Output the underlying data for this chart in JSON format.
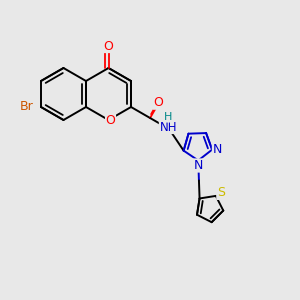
{
  "bg_color": "#e8e8e8",
  "bond_color": "#000000",
  "figsize": [
    3.0,
    3.0
  ],
  "dpi": 100,
  "colors": {
    "O": "#ff0000",
    "Br": "#cc5500",
    "N": "#0000cc",
    "NH": "#0000cc",
    "H": "#008888",
    "S": "#ccbb00"
  }
}
